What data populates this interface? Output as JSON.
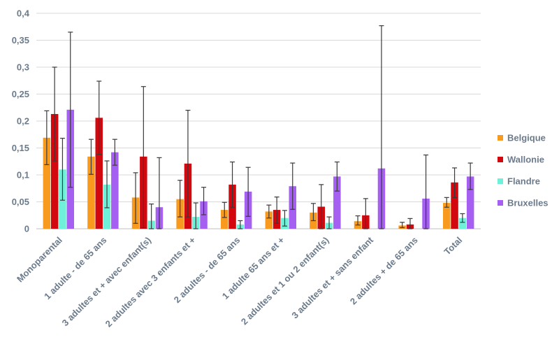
{
  "chart_data": {
    "type": "bar",
    "title": "",
    "xlabel": "",
    "ylabel": "",
    "ylim": [
      0,
      0.4
    ],
    "yticks": [
      0,
      0.05,
      0.1,
      0.15,
      0.2,
      0.25,
      0.3,
      0.35,
      0.4
    ],
    "ytick_labels": [
      "0",
      "0,05",
      "0,1",
      "0,15",
      "0,2",
      "0,25",
      "0,3",
      "0,35",
      "0,4"
    ],
    "grid": true,
    "legend_position": "right",
    "categories": [
      "Monoparental",
      "1 adulte - de 65 ans",
      "3 adultes et + avec enfant(s)",
      "2 adultes avec 3 enfants et +",
      "2 adultes - de 65 ans",
      "1 adulte 65 ans et +",
      "2 adultes et 1 ou 2 enfant(s)",
      "3 adultes et + sans enfant",
      "2 adultes + de 65 ans",
      "Total"
    ],
    "series": [
      {
        "name": "Belgique",
        "color": "#f79a1e",
        "values": [
          0.169,
          0.134,
          0.058,
          0.055,
          0.035,
          0.032,
          0.03,
          0.014,
          0.006,
          0.048
        ],
        "err_low": [
          0.119,
          0.101,
          0.01,
          0.022,
          0.021,
          0.02,
          0.015,
          0.007,
          0.002,
          0.04
        ],
        "err_high": [
          0.219,
          0.166,
          0.104,
          0.09,
          0.049,
          0.044,
          0.047,
          0.024,
          0.012,
          0.058
        ]
      },
      {
        "name": "Wallonie",
        "color": "#d3070e",
        "values": [
          0.213,
          0.206,
          0.134,
          0.121,
          0.082,
          0.035,
          0.041,
          0.025,
          0.008,
          0.086
        ],
        "err_low": [
          0.126,
          0.138,
          0.002,
          0.022,
          0.04,
          0.01,
          0.0,
          0.0,
          0.0,
          0.058
        ],
        "err_high": [
          0.3,
          0.274,
          0.264,
          0.22,
          0.124,
          0.059,
          0.082,
          0.056,
          0.019,
          0.113
        ]
      },
      {
        "name": "Flandre",
        "color": "#6ff0d8",
        "values": [
          0.11,
          0.082,
          0.015,
          0.022,
          0.008,
          0.02,
          0.011,
          null,
          null,
          0.02
        ],
        "err_low": [
          0.053,
          0.039,
          0.0,
          0.0,
          0.0,
          0.005,
          0.0,
          null,
          null,
          0.012
        ],
        "err_high": [
          0.168,
          0.126,
          0.046,
          0.048,
          0.015,
          0.034,
          0.022,
          null,
          null,
          0.028
        ]
      },
      {
        "name": "Bruxelles",
        "color": "#a560f2",
        "values": [
          0.221,
          0.142,
          0.04,
          0.051,
          0.069,
          0.079,
          0.097,
          0.112,
          0.056,
          0.097
        ],
        "err_low": [
          0.077,
          0.118,
          0.0,
          0.026,
          0.023,
          0.036,
          0.07,
          0.0,
          0.0,
          0.073
        ],
        "err_high": [
          0.365,
          0.166,
          0.132,
          0.077,
          0.114,
          0.122,
          0.124,
          0.377,
          0.137,
          0.122
        ]
      }
    ]
  }
}
